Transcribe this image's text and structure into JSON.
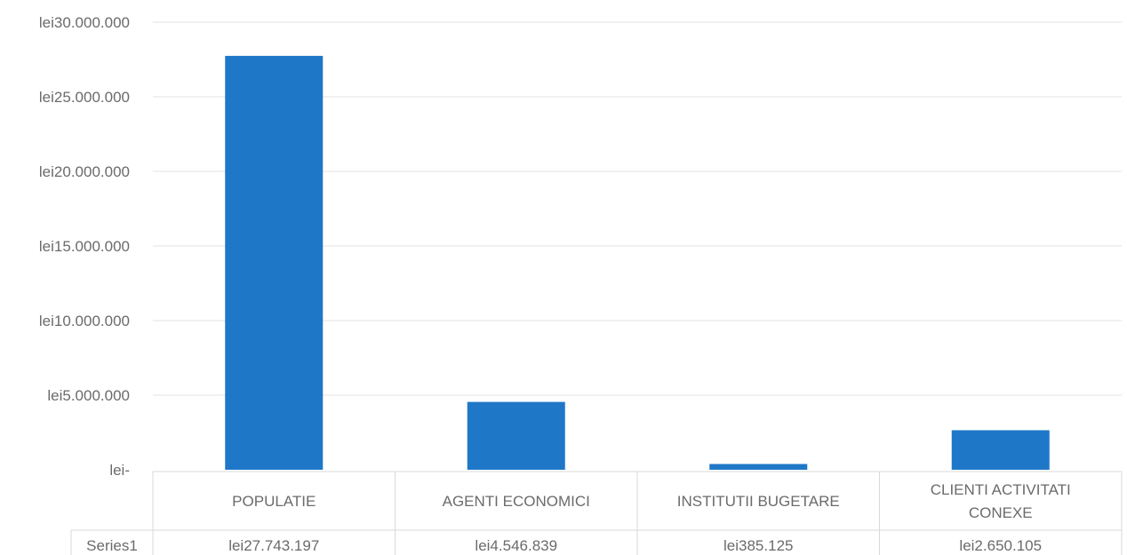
{
  "chart_data": {
    "type": "bar",
    "categories": [
      "POPULATIE",
      "AGENTI ECONOMICI",
      "INSTITUTII BUGETARE",
      "CLIENTI ACTIVITATI CONEXE"
    ],
    "category_lines": [
      [
        "POPULATIE"
      ],
      [
        "AGENTI ECONOMICI"
      ],
      [
        "INSTITUTII BUGETARE"
      ],
      [
        "CLIENTI ACTIVITATI",
        "CONEXE"
      ]
    ],
    "series": [
      {
        "name": "Series1",
        "values": [
          27743197,
          4546839,
          385125,
          2650105
        ]
      }
    ],
    "value_labels": [
      "lei27.743.197",
      "lei4.546.839",
      "lei385.125",
      "lei2.650.105"
    ],
    "y_ticks": [
      {
        "value": 0,
        "label": "lei-"
      },
      {
        "value": 5000000,
        "label": "lei5.000.000"
      },
      {
        "value": 10000000,
        "label": "lei10.000.000"
      },
      {
        "value": 15000000,
        "label": "lei15.000.000"
      },
      {
        "value": 20000000,
        "label": "lei20.000.000"
      },
      {
        "value": 25000000,
        "label": "lei25.000.000"
      },
      {
        "value": 30000000,
        "label": "lei30.000.000"
      }
    ],
    "ylim": [
      0,
      30000000
    ],
    "grid": true,
    "data_table": true,
    "title": "",
    "xlabel": "",
    "ylabel": "",
    "bar_color": "#1f77c8",
    "grid_color": "#e3e3e3"
  }
}
